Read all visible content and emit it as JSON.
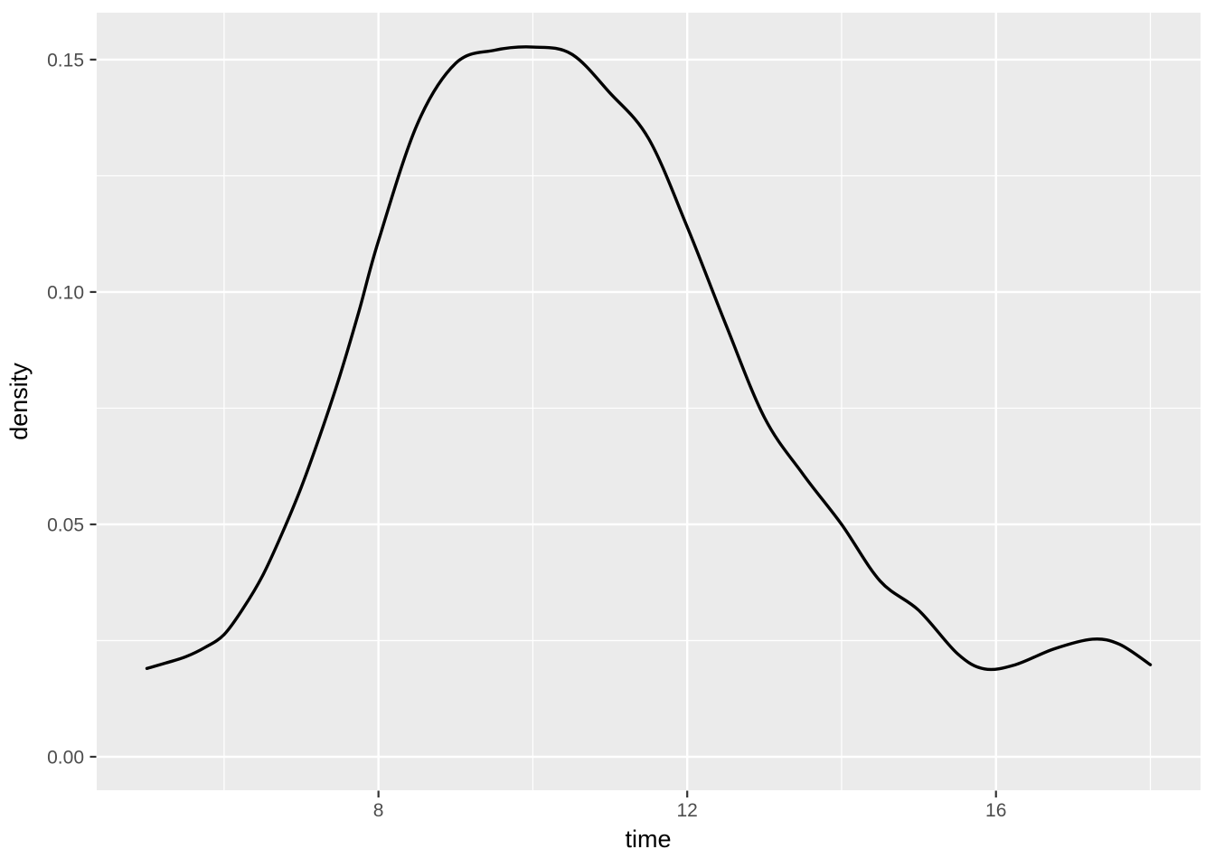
{
  "figure": {
    "background": "#ffffff"
  },
  "chart_data": {
    "type": "line",
    "title": "",
    "xlabel": "time",
    "ylabel": "density",
    "legend": "none",
    "grid": "on",
    "panel_bg": "#ebebeb",
    "grid_color": "#ffffff",
    "tick_mark_color": "#333333",
    "tick_label_color": "#4d4d4d",
    "line_color": "#000000",
    "xlim": [
      4.35,
      18.65
    ],
    "ylim": [
      -0.0072,
      0.1601
    ],
    "x_major_ticks": [
      8,
      12,
      16
    ],
    "x_major_tick_labels": [
      "8",
      "12",
      "16"
    ],
    "x_minor_ticks": [
      6,
      10,
      14,
      18
    ],
    "y_major_ticks": [
      0.0,
      0.05,
      0.1,
      0.15
    ],
    "y_major_tick_labels": [
      "0.00",
      "0.05",
      "0.10",
      "0.15"
    ],
    "y_minor_ticks": [
      0.025,
      0.075,
      0.125
    ],
    "series": [
      {
        "name": "density",
        "x": [
          5.0,
          5.25,
          5.5,
          5.75,
          6.0,
          6.25,
          6.5,
          6.75,
          7.0,
          7.25,
          7.5,
          7.75,
          8.0,
          8.5,
          9.0,
          9.5,
          10.0,
          10.5,
          11.0,
          11.5,
          12.0,
          12.5,
          13.0,
          13.5,
          14.0,
          14.5,
          15.0,
          15.5,
          15.85,
          16.25,
          16.75,
          17.25,
          17.6,
          18.0
        ],
        "y": [
          0.019,
          0.0202,
          0.0215,
          0.0235,
          0.0263,
          0.032,
          0.039,
          0.048,
          0.058,
          0.0695,
          0.082,
          0.096,
          0.111,
          0.136,
          0.1492,
          0.152,
          0.1527,
          0.1512,
          0.1428,
          0.133,
          0.114,
          0.093,
          0.073,
          0.0608,
          0.05,
          0.0378,
          0.0315,
          0.0222,
          0.0189,
          0.0198,
          0.0232,
          0.0253,
          0.0242,
          0.0198
        ]
      }
    ]
  }
}
